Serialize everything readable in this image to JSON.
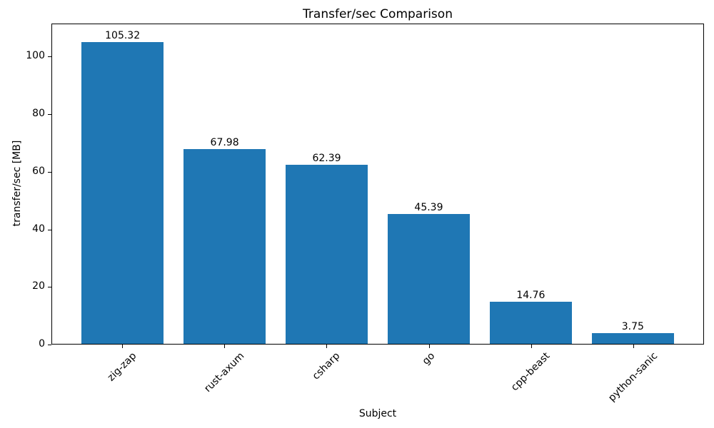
{
  "chart_data": {
    "type": "bar",
    "title": "Transfer/sec Comparison",
    "xlabel": "Subject",
    "ylabel": "transfer/sec [MB]",
    "categories": [
      "zig-zap",
      "rust-axum",
      "csharp",
      "go",
      "cpp-beast",
      "python-sanic"
    ],
    "values": [
      105.32,
      67.98,
      62.39,
      45.39,
      14.76,
      3.75
    ],
    "bar_value_labels": [
      "105.32",
      "67.98",
      "62.39",
      "45.39",
      "14.76",
      "3.75"
    ],
    "bar_color": "#1f77b4",
    "axis_color": "#000000",
    "text_color": "#000000",
    "background_color": "#ffffff",
    "ylim": [
      0,
      111.5
    ],
    "yticks": [
      0,
      20,
      40,
      60,
      80,
      100
    ],
    "x_tick_label_rotation_deg": 45,
    "grid": false,
    "legend": "none"
  }
}
